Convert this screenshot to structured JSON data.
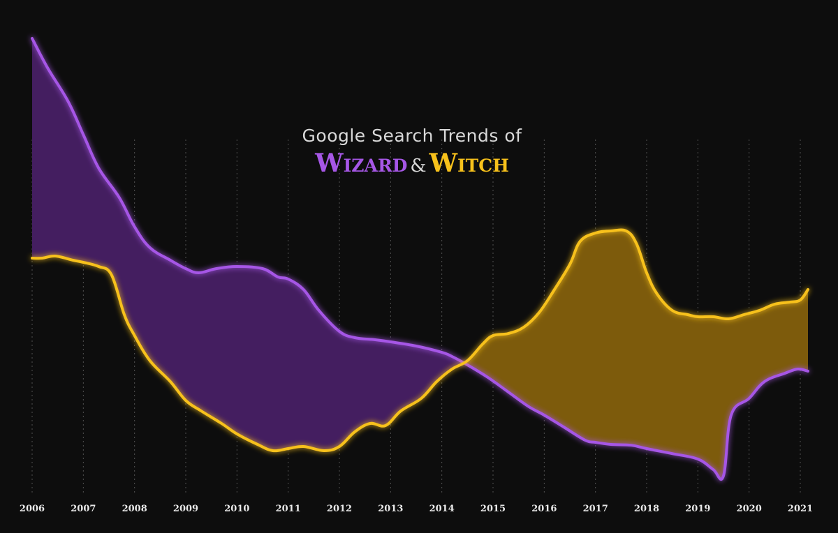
{
  "title": {
    "line1": "Google Search Trends of",
    "wizard": "Wizard",
    "amp": "&",
    "witch": "Witch"
  },
  "colors": {
    "background": "#0d0d0d",
    "wizard": "#a657e6",
    "witch": "#f7c11b",
    "wizard_fill": "#441e60",
    "witch_fill": "#7d5b0c",
    "grid": "#6f6f6f"
  },
  "chart_data": {
    "type": "area",
    "x_axis": {
      "min": 2006.0,
      "max": 2021.15,
      "ticks": [
        "2006",
        "2007",
        "2008",
        "2009",
        "2010",
        "2011",
        "2012",
        "2013",
        "2014",
        "2015",
        "2016",
        "2017",
        "2018",
        "2019",
        "2020",
        "2021"
      ]
    },
    "y_axis": {
      "min": 0,
      "max": 100,
      "labels_shown": false
    },
    "grid": "vertical dotted lines at each year",
    "series": [
      {
        "name": "Wizard",
        "color": "#a657e6",
        "points": [
          [
            2006.0,
            100
          ],
          [
            2006.3,
            93
          ],
          [
            2006.7,
            85
          ],
          [
            2007.0,
            77
          ],
          [
            2007.3,
            69
          ],
          [
            2007.7,
            62
          ],
          [
            2008.0,
            55
          ],
          [
            2008.3,
            50
          ],
          [
            2008.7,
            47
          ],
          [
            2009.0,
            45
          ],
          [
            2009.25,
            44
          ],
          [
            2009.6,
            45
          ],
          [
            2010.0,
            45.5
          ],
          [
            2010.5,
            45
          ],
          [
            2010.8,
            43
          ],
          [
            2011.0,
            42.5
          ],
          [
            2011.3,
            40
          ],
          [
            2011.6,
            35
          ],
          [
            2012.0,
            30
          ],
          [
            2012.3,
            28.5
          ],
          [
            2012.7,
            28
          ],
          [
            2013.0,
            27.5
          ],
          [
            2013.5,
            26.5
          ],
          [
            2014.0,
            25
          ],
          [
            2014.2,
            24
          ],
          [
            2014.5,
            22
          ],
          [
            2014.9,
            19
          ],
          [
            2015.3,
            15.5
          ],
          [
            2015.7,
            12
          ],
          [
            2016.0,
            10
          ],
          [
            2016.4,
            7
          ],
          [
            2016.8,
            4
          ],
          [
            2017.0,
            3.5
          ],
          [
            2017.3,
            3
          ],
          [
            2017.7,
            2.8
          ],
          [
            2018.0,
            2
          ],
          [
            2018.5,
            0.8
          ],
          [
            2019.0,
            -0.5
          ],
          [
            2019.3,
            -3
          ],
          [
            2019.5,
            -4.5
          ],
          [
            2019.65,
            10
          ],
          [
            2020.0,
            14
          ],
          [
            2020.3,
            18
          ],
          [
            2020.7,
            20
          ],
          [
            2020.95,
            21
          ],
          [
            2021.15,
            20.5
          ]
        ]
      },
      {
        "name": "Witch",
        "color": "#f7c11b",
        "points": [
          [
            2006.0,
            47.5
          ],
          [
            2006.2,
            47.5
          ],
          [
            2006.45,
            48
          ],
          [
            2006.8,
            47
          ],
          [
            2007.0,
            46.5
          ],
          [
            2007.3,
            45.5
          ],
          [
            2007.55,
            43.5
          ],
          [
            2007.8,
            34
          ],
          [
            2008.0,
            29
          ],
          [
            2008.3,
            23
          ],
          [
            2008.7,
            18
          ],
          [
            2009.0,
            13.5
          ],
          [
            2009.3,
            11
          ],
          [
            2009.7,
            8
          ],
          [
            2010.0,
            5.5
          ],
          [
            2010.4,
            3
          ],
          [
            2010.7,
            1.5
          ],
          [
            2011.0,
            2
          ],
          [
            2011.3,
            2.5
          ],
          [
            2011.7,
            1.5
          ],
          [
            2012.0,
            2.5
          ],
          [
            2012.3,
            6
          ],
          [
            2012.6,
            8
          ],
          [
            2012.9,
            7.5
          ],
          [
            2013.2,
            11
          ],
          [
            2013.6,
            14
          ],
          [
            2013.9,
            18
          ],
          [
            2014.2,
            21
          ],
          [
            2014.5,
            23
          ],
          [
            2014.8,
            27
          ],
          [
            2015.0,
            29
          ],
          [
            2015.3,
            29.5
          ],
          [
            2015.6,
            31
          ],
          [
            2015.9,
            34.5
          ],
          [
            2016.2,
            40
          ],
          [
            2016.5,
            46
          ],
          [
            2016.7,
            51.5
          ],
          [
            2017.0,
            53.5
          ],
          [
            2017.3,
            54
          ],
          [
            2017.6,
            54
          ],
          [
            2017.8,
            51
          ],
          [
            2018.0,
            44
          ],
          [
            2018.2,
            39
          ],
          [
            2018.5,
            35
          ],
          [
            2018.8,
            34
          ],
          [
            2019.0,
            33.5
          ],
          [
            2019.3,
            33.5
          ],
          [
            2019.6,
            33
          ],
          [
            2019.9,
            34
          ],
          [
            2020.2,
            35
          ],
          [
            2020.5,
            36.5
          ],
          [
            2020.8,
            37
          ],
          [
            2021.0,
            37.5
          ],
          [
            2021.15,
            40
          ]
        ]
      }
    ]
  }
}
